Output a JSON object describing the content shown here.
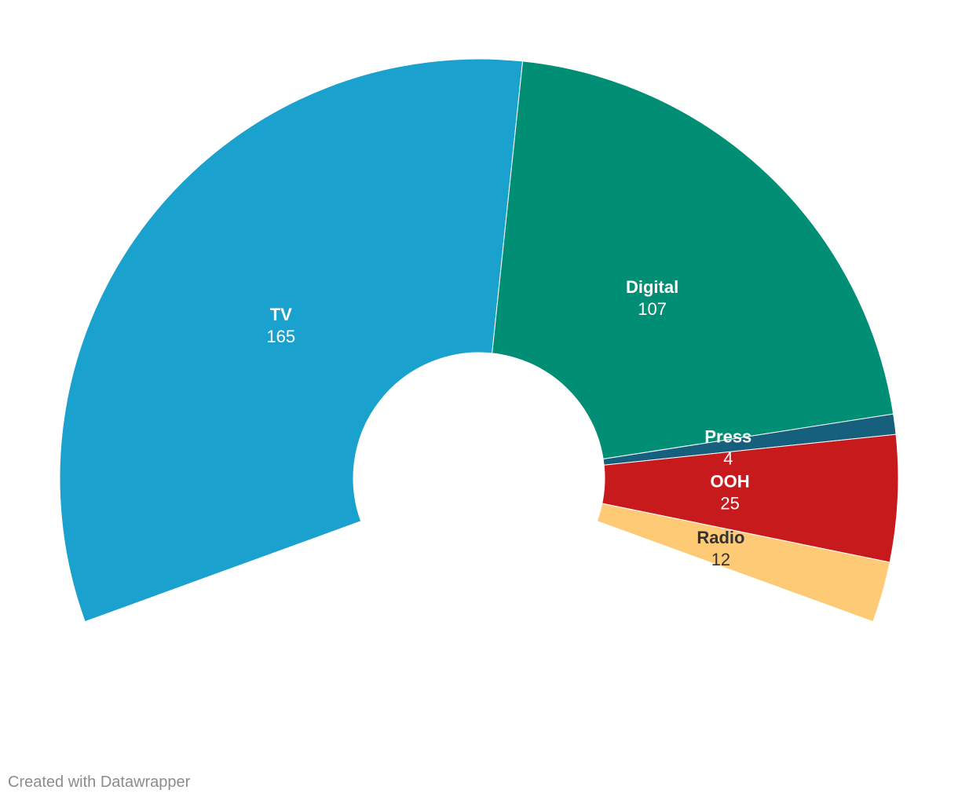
{
  "credit": "Created with Datawrapper",
  "chart_data": {
    "type": "pie",
    "variant": "donut-arc",
    "start_angle_deg": 250,
    "total_angle_deg": 220,
    "slices": [
      {
        "label": "TV",
        "value": 165,
        "color": "#1ba1cd",
        "text_color": "#ffffff"
      },
      {
        "label": "Digital",
        "value": 107,
        "color": "#008f74",
        "text_color": "#ffffff"
      },
      {
        "label": "Press",
        "value": 4,
        "color": "#17607d",
        "text_color": "#ffffff"
      },
      {
        "label": "OOH",
        "value": 25,
        "color": "#c71a1d",
        "text_color": "#ffffff"
      },
      {
        "label": "Radio",
        "value": 12,
        "color": "#ffca76",
        "text_color": "#333333"
      }
    ]
  }
}
